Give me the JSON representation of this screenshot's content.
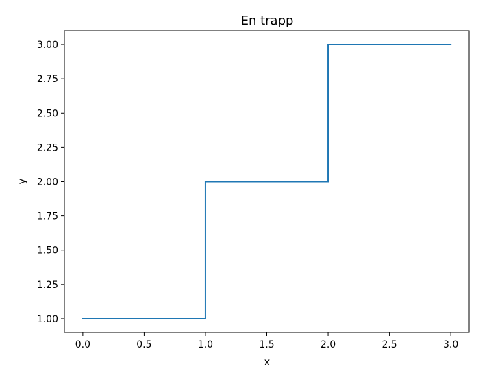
{
  "chart_data": {
    "type": "line",
    "title": "En trapp",
    "xlabel": "x",
    "ylabel": "y",
    "xlim": [
      -0.15,
      3.15
    ],
    "ylim": [
      0.9,
      3.1
    ],
    "grid": false,
    "x_ticks": [
      0.0,
      0.5,
      1.0,
      1.5,
      2.0,
      2.5,
      3.0
    ],
    "x_tick_labels": [
      "0.0",
      "0.5",
      "1.0",
      "1.5",
      "2.0",
      "2.5",
      "3.0"
    ],
    "y_ticks": [
      1.0,
      1.25,
      1.5,
      1.75,
      2.0,
      2.25,
      2.5,
      2.75,
      3.0
    ],
    "y_tick_labels": [
      "1.00",
      "1.25",
      "1.50",
      "1.75",
      "2.00",
      "2.25",
      "2.50",
      "2.75",
      "3.00"
    ],
    "series": [
      {
        "color": "#1f77b4",
        "step": "post",
        "x": [
          0,
          1,
          2,
          3
        ],
        "y": [
          1,
          2,
          3,
          3
        ]
      }
    ]
  }
}
